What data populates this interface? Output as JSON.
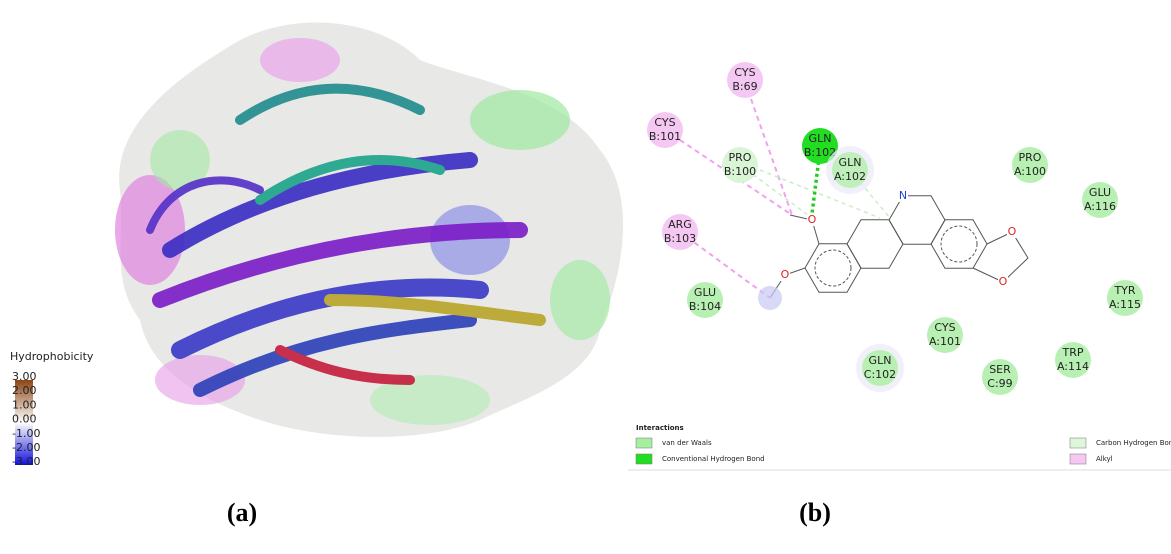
{
  "panel_a": {
    "label": "(a)",
    "colorbar": {
      "title": "Hydrophobicity",
      "ticks": [
        "3.00",
        "2.00",
        "1.00",
        "0.00",
        "-1.00",
        "-2.00",
        "-3.00"
      ]
    }
  },
  "panel_b": {
    "label": "(b)",
    "residues": [
      {
        "name": "CYS",
        "id": "B:69"
      },
      {
        "name": "CYS",
        "id": "B:101"
      },
      {
        "name": "PRO",
        "id": "B:100"
      },
      {
        "name": "GLN",
        "id": "B:102"
      },
      {
        "name": "GLN",
        "id": "A:102"
      },
      {
        "name": "PRO",
        "id": "A:100"
      },
      {
        "name": "GLU",
        "id": "A:116"
      },
      {
        "name": "ARG",
        "id": "B:103"
      },
      {
        "name": "GLU",
        "id": "B:104"
      },
      {
        "name": "TYR",
        "id": "A:115"
      },
      {
        "name": "CYS",
        "id": "A:101"
      },
      {
        "name": "GLN",
        "id": "C:102"
      },
      {
        "name": "SER",
        "id": "C:99"
      },
      {
        "name": "TRP",
        "id": "A:114"
      }
    ],
    "atoms": [
      "O",
      "O",
      "N",
      "O",
      "O"
    ],
    "legend": {
      "title": "Interactions",
      "items": [
        "van der Waals",
        "Conventional Hydrogen Bond",
        "Carbon Hydrogen Bond",
        "Alkyl"
      ]
    }
  }
}
